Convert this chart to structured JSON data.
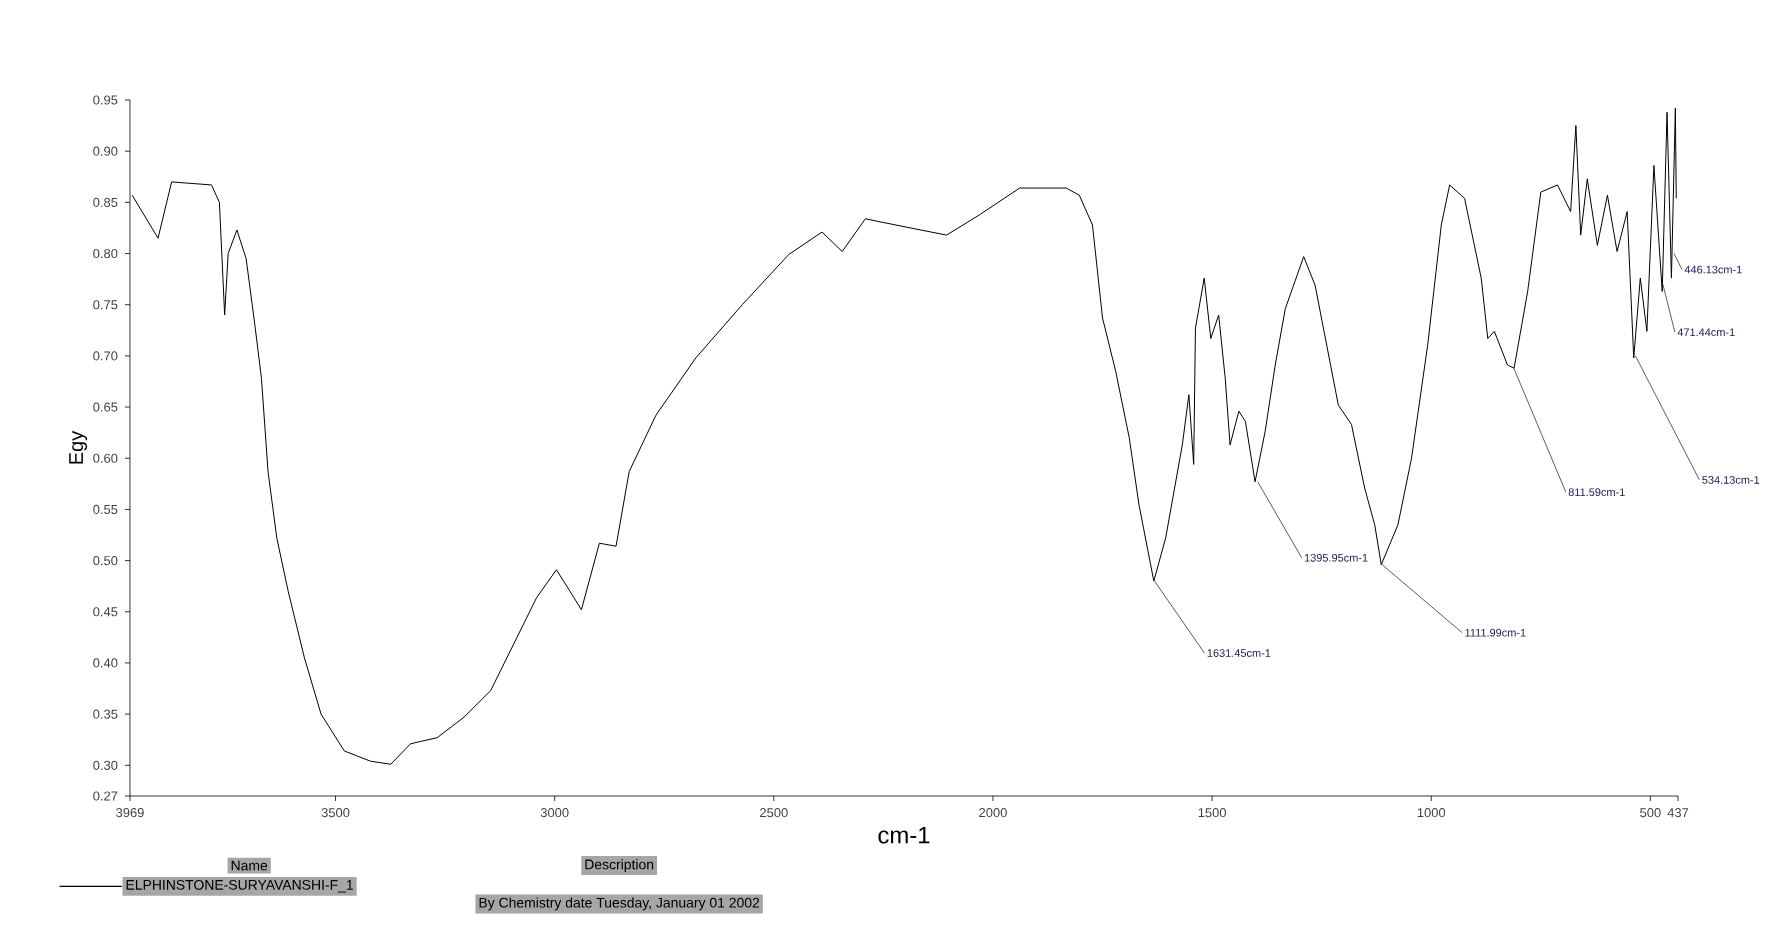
{
  "chart_data": {
    "type": "line",
    "xlabel": "cm-1",
    "ylabel": "Egy",
    "xlim": [
      3969,
      437
    ],
    "ylim": [
      0.27,
      0.95
    ],
    "xticks": [
      3969,
      3500,
      3000,
      2500,
      2000,
      1500,
      1000,
      500,
      437
    ],
    "yticks": [
      0.27,
      {
        "value": 0.3,
        "label": "0.30"
      },
      0.35,
      {
        "value": 0.4,
        "label": "0.40"
      },
      0.45,
      {
        "value": 0.5,
        "label": "0.50"
      },
      0.55,
      {
        "value": 0.6,
        "label": "0.60"
      },
      0.65,
      {
        "value": 0.7,
        "label": "0.70"
      },
      0.75,
      {
        "value": 0.8,
        "label": "0.80"
      },
      0.85,
      {
        "value": 0.9,
        "label": "0.90"
      },
      0.95
    ],
    "legend": "bottom",
    "marker": "none",
    "line_style": "solid",
    "series": [
      {
        "name": "ELPHINSTONE-SURYAVANSHI-F_1",
        "color": "#000000",
        "x": [
          3964,
          3905,
          3874,
          3783,
          3765,
          3753,
          3745,
          3725,
          3704,
          3684,
          3669,
          3654,
          3634,
          3608,
          3571,
          3533,
          3480,
          3420,
          3374,
          3329,
          3268,
          3207,
          3146,
          3086,
          3041,
          2996,
          2965,
          2939,
          2898,
          2860,
          2830,
          2769,
          2678,
          2572,
          2466,
          2390,
          2344,
          2291,
          2258,
          2106,
          2030,
          1939,
          1833,
          1803,
          1773,
          1750,
          1720,
          1689,
          1667,
          1633,
          1606,
          1568,
          1553,
          1542,
          1538,
          1518,
          1503,
          1485,
          1470,
          1459,
          1439,
          1424,
          1402,
          1379,
          1356,
          1333,
          1291,
          1265,
          1212,
          1182,
          1152,
          1129,
          1114,
          1076,
          1045,
          1008,
          977,
          958,
          924,
          886,
          871,
          856,
          826,
          811,
          780,
          750,
          712,
          682,
          670,
          659,
          644,
          621,
          598,
          576,
          553,
          538,
          523,
          508,
          492,
          473,
          462,
          452,
          443,
          441
        ],
        "values": [
          0.857,
          0.815,
          0.87,
          0.867,
          0.85,
          0.74,
          0.8,
          0.823,
          0.795,
          0.73,
          0.678,
          0.587,
          0.522,
          0.47,
          0.405,
          0.35,
          0.314,
          0.304,
          0.301,
          0.321,
          0.327,
          0.347,
          0.373,
          0.425,
          0.464,
          0.491,
          0.47,
          0.452,
          0.517,
          0.514,
          0.587,
          0.642,
          0.698,
          0.75,
          0.799,
          0.821,
          0.802,
          0.834,
          0.831,
          0.818,
          0.838,
          0.864,
          0.864,
          0.857,
          0.828,
          0.737,
          0.685,
          0.62,
          0.555,
          0.48,
          0.522,
          0.613,
          0.662,
          0.594,
          0.727,
          0.776,
          0.717,
          0.74,
          0.678,
          0.613,
          0.646,
          0.636,
          0.577,
          0.626,
          0.691,
          0.746,
          0.797,
          0.769,
          0.652,
          0.633,
          0.571,
          0.535,
          0.496,
          0.535,
          0.6,
          0.711,
          0.828,
          0.867,
          0.854,
          0.776,
          0.717,
          0.724,
          0.691,
          0.688,
          0.763,
          0.86,
          0.867,
          0.841,
          0.925,
          0.818,
          0.873,
          0.808,
          0.857,
          0.802,
          0.841,
          0.698,
          0.776,
          0.724,
          0.886,
          0.763,
          0.938,
          0.776,
          0.942,
          0.854
        ]
      }
    ],
    "annotations": [
      {
        "text": "1631.45cm-1",
        "x": 1631.45,
        "y": 0.48
      },
      {
        "text": "1395.95cm-1",
        "x": 1395.95,
        "y": 0.577
      },
      {
        "text": "1111.99cm-1",
        "x": 1111.99,
        "y": 0.496
      },
      {
        "text": "811.59cm-1",
        "x": 811.59,
        "y": 0.688
      },
      {
        "text": "534.13cm-1",
        "x": 534.13,
        "y": 0.7
      },
      {
        "text": "471.44cm-1",
        "x": 471.44,
        "y": 0.77
      },
      {
        "text": "446.13cm-1",
        "x": 446.13,
        "y": 0.8
      },
      "Name",
      "Description",
      "By Chemistry date Tuesday, January 01 2002"
    ]
  }
}
